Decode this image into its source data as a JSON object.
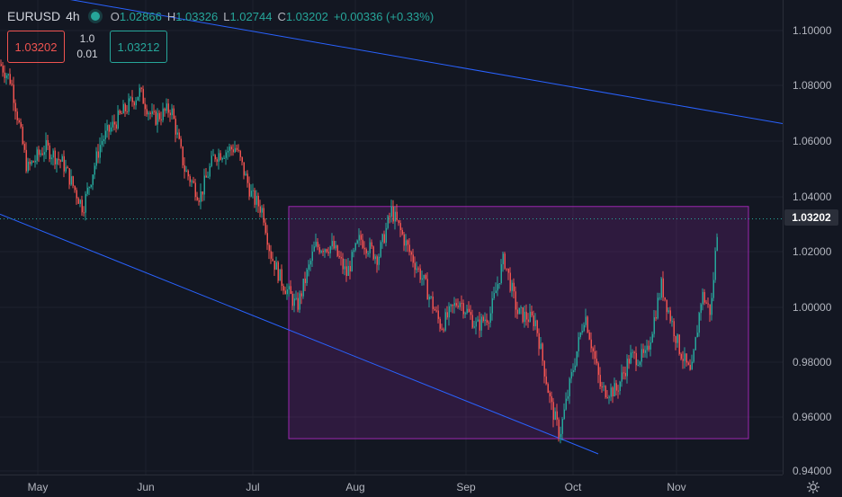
{
  "legend": {
    "symbol": "EURUSD",
    "interval": "4h",
    "open_label": "O",
    "open": "1.02866",
    "high_label": "H",
    "high": "1.03326",
    "low_label": "L",
    "low": "1.02744",
    "close_label": "C",
    "close": "1.03202",
    "change": "+0.00336 (+0.33%)"
  },
  "trade": {
    "sell_price": "1.03202",
    "lot_top": "1.0",
    "lot_bottom": "0.01",
    "buy_price": "1.03212"
  },
  "price_scale": {
    "ticks": [
      "1.10000",
      "1.08000",
      "1.06000",
      "1.04000",
      "1.02000",
      "1.00000",
      "0.98000",
      "0.96000",
      "0.94000"
    ],
    "current_price": "1.03202"
  },
  "time_scale": {
    "ticks": [
      "May",
      "Jun",
      "Jul",
      "Aug",
      "Sep",
      "Oct",
      "Nov"
    ]
  },
  "colors": {
    "background": "#131722",
    "up": "#26a69a",
    "down": "#ef5350",
    "trendline": "#2962ff",
    "rectangle": "#9c27b0"
  },
  "drawings": {
    "upper_trendline": {
      "start_price": 1.1158,
      "end_price": 1.0665
    },
    "lower_trendline": {
      "start_price": 1.0337,
      "end_price": 0.947
    },
    "range_rectangle": {
      "high": 1.0365,
      "low": 0.9525
    }
  },
  "icons": {
    "live": "live-dot-icon",
    "settings": "gear-icon"
  }
}
